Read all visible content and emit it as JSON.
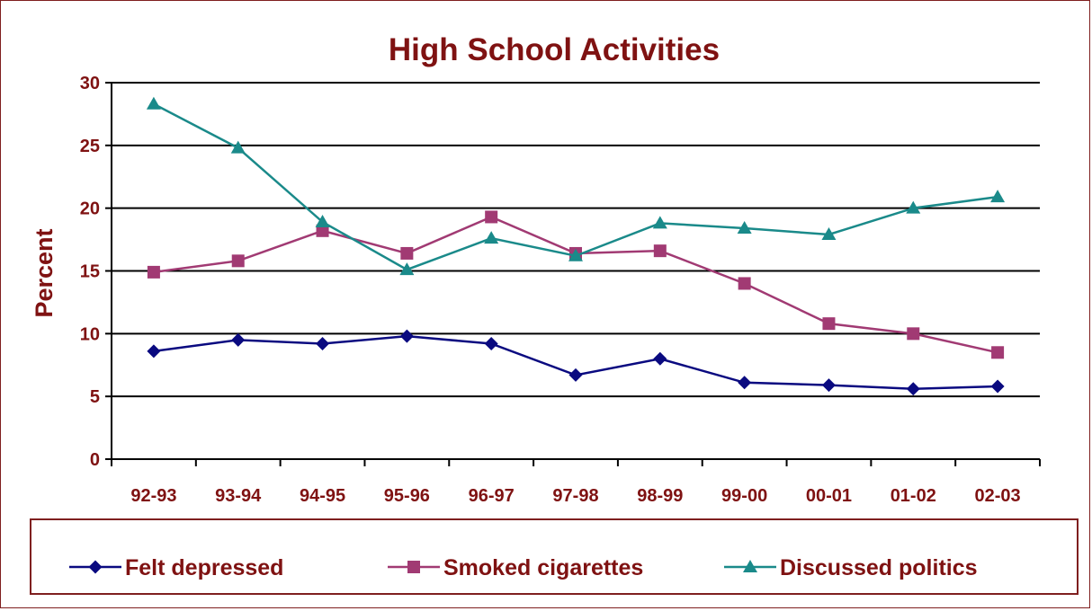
{
  "chart_data": {
    "type": "line",
    "title": "High School Activities",
    "ylabel": "Percent",
    "xlabel": "",
    "categories": [
      "92-93",
      "93-94",
      "94-95",
      "95-96",
      "96-97",
      "97-98",
      "98-99",
      "99-00",
      "00-01",
      "01-02",
      "02-03"
    ],
    "ylim": [
      0,
      30
    ],
    "yticks": [
      0,
      5,
      10,
      15,
      20,
      25,
      30
    ],
    "grid": true,
    "legend_position": "bottom",
    "series": [
      {
        "name": "Felt depressed",
        "color": "#0a0a80",
        "marker": "diamond",
        "values": [
          8.6,
          9.5,
          9.2,
          9.8,
          9.2,
          6.7,
          8.0,
          6.1,
          5.9,
          5.6,
          5.8
        ]
      },
      {
        "name": "Smoked cigarettes",
        "color": "#a13a73",
        "marker": "square",
        "values": [
          14.9,
          15.8,
          18.2,
          16.4,
          19.3,
          16.4,
          16.6,
          14.0,
          10.8,
          10.0,
          8.5
        ]
      },
      {
        "name": "Discussed politics",
        "color": "#1a8a8a",
        "marker": "triangle",
        "values": [
          28.3,
          24.8,
          18.9,
          15.1,
          17.6,
          16.2,
          18.8,
          18.4,
          17.9,
          20.0,
          20.9
        ]
      }
    ]
  }
}
